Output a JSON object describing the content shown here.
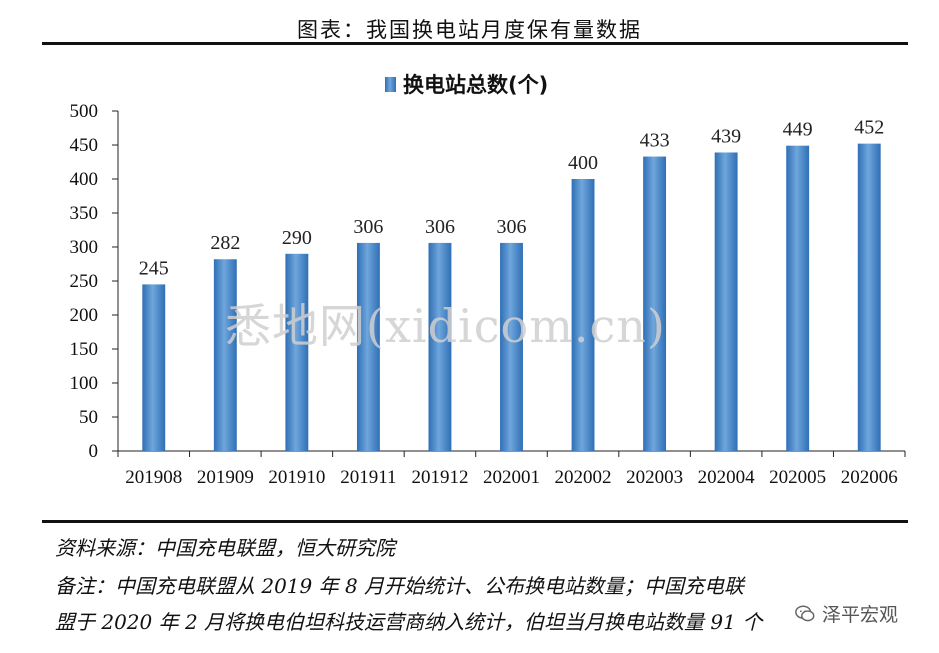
{
  "figure_title": "图表：我国换电站月度保有量数据",
  "source": "资料来源：中国充电联盟，恒大研究院",
  "note_line1": "备注：中国充电联盟从 2019 年 8 月开始统计、公布换电站数量；中国充电联",
  "note_line2": "盟于 2020 年 2 月将换电伯坦科技运营商纳入统计，伯坦当月换电站数量 91 个",
  "watermark": "悉地网(xidicom.cn)",
  "brand": "泽平宏观",
  "colors": {
    "bar": "#2f6fb5",
    "bar_highlight": "#6fa6dc",
    "text": "#111111"
  },
  "chart_data": {
    "type": "bar",
    "title": "",
    "categories": [
      "201908",
      "201909",
      "201910",
      "201911",
      "201912",
      "202001",
      "202002",
      "202003",
      "202004",
      "202005",
      "202006"
    ],
    "series": [
      {
        "name": "换电站总数(个)",
        "values": [
          245,
          282,
          290,
          306,
          306,
          306,
          400,
          433,
          439,
          449,
          452
        ]
      }
    ],
    "yticks": [
      "0",
      "50",
      "100",
      "150",
      "200",
      "250",
      "300",
      "350",
      "400",
      "450",
      "500"
    ],
    "ylim": [
      0,
      500
    ],
    "xlabel": "",
    "ylabel": "",
    "grid": false,
    "legend": "top-center",
    "data_labels": true
  }
}
